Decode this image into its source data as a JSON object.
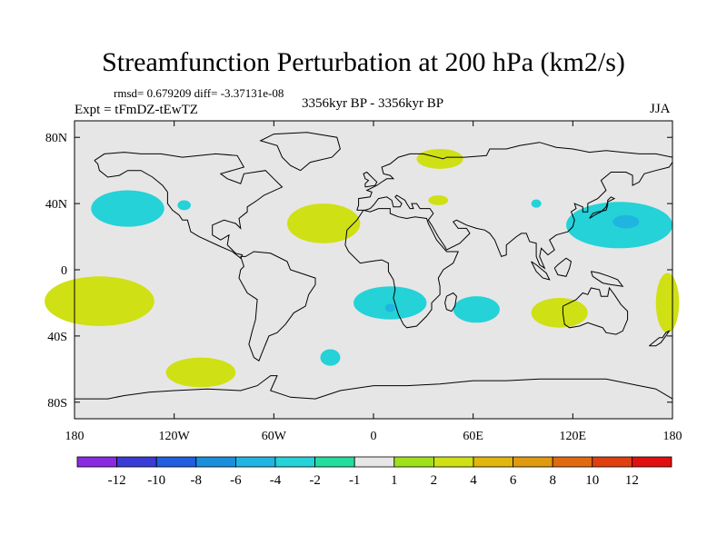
{
  "title": "Streamfunction Perturbation at 200 hPa (km2/s)",
  "stats": "rmsd= 0.679209 diff= -3.37131e-08",
  "expt": "Expt = tFmDZ-tEwTZ",
  "period": "3356kyr BP - 3356kyr BP",
  "season": "JJA",
  "colors": {
    "ocean": "#e6e6e6",
    "coast": "#000000"
  },
  "map_data": {
    "type": "contour-fill map",
    "projection": "cylindrical equidistant",
    "lon_range": [
      -180,
      180
    ],
    "lat_range": [
      -90,
      90
    ],
    "lon_ticks": [
      {
        "value": -180,
        "label": "180"
      },
      {
        "value": -120,
        "label": "120W"
      },
      {
        "value": -60,
        "label": "60W"
      },
      {
        "value": 0,
        "label": "0"
      },
      {
        "value": 60,
        "label": "60E"
      },
      {
        "value": 120,
        "label": "120E"
      },
      {
        "value": 180,
        "label": "180"
      }
    ],
    "lat_ticks": [
      {
        "value": 80,
        "label": "80N"
      },
      {
        "value": 40,
        "label": "40N"
      },
      {
        "value": 0,
        "label": "0"
      },
      {
        "value": -40,
        "label": "40S"
      },
      {
        "value": -80,
        "label": "80S"
      }
    ],
    "anomalies": [
      {
        "name": "n-pacific-neg",
        "lon": -148,
        "lat": 37,
        "rlon": 22,
        "rlat": 11,
        "level": "-2"
      },
      {
        "name": "n-america-neg",
        "lon": -114,
        "lat": 39,
        "rlon": 4,
        "rlat": 3,
        "level": "-2"
      },
      {
        "name": "n-atlantic-pos",
        "lon": -30,
        "lat": 28,
        "rlon": 22,
        "rlat": 12,
        "level": "2"
      },
      {
        "name": "arctic-pos",
        "lon": 40,
        "lat": 67,
        "rlon": 14,
        "rlat": 6,
        "level": "2"
      },
      {
        "name": "mediterranean-pos",
        "lon": 39,
        "lat": 42,
        "rlon": 6,
        "rlat": 3,
        "level": "2"
      },
      {
        "name": "central-asia-neg",
        "lon": 98,
        "lat": 40,
        "rlon": 3,
        "rlat": 2.5,
        "level": "-2"
      },
      {
        "name": "nw-pacific-neg",
        "lon": 148,
        "lat": 27,
        "rlon": 32,
        "rlat": 14,
        "level": "-2"
      },
      {
        "name": "nw-pacific-core",
        "lon": 152,
        "lat": 29,
        "rlon": 8,
        "rlat": 4,
        "level": "-4"
      },
      {
        "name": "s-pacific-pos",
        "lon": -165,
        "lat": -19,
        "rlon": 33,
        "rlat": 15,
        "level": "2"
      },
      {
        "name": "s-atlantic-neg",
        "lon": 10,
        "lat": -20,
        "rlon": 22,
        "rlat": 10,
        "level": "-2"
      },
      {
        "name": "s-atlantic-core",
        "lon": 10,
        "lat": -23,
        "rlon": 3,
        "rlat": 2.5,
        "level": "-4"
      },
      {
        "name": "indian-ocean-neg",
        "lon": 62,
        "lat": -24,
        "rlon": 14,
        "rlat": 8,
        "level": "-2"
      },
      {
        "name": "australia-pos",
        "lon": 112,
        "lat": -26,
        "rlon": 17,
        "rlat": 9,
        "level": "2"
      },
      {
        "name": "tasman-pos",
        "lon": 177,
        "lat": -20,
        "rlon": 7,
        "rlat": 18,
        "level": "2"
      },
      {
        "name": "se-pacific-pos",
        "lon": -104,
        "lat": -62,
        "rlon": 21,
        "rlat": 9,
        "level": "2"
      },
      {
        "name": "s-atlantic-south-neg",
        "lon": -26,
        "lat": -53,
        "rlon": 6,
        "rlat": 5,
        "level": "-2"
      }
    ]
  },
  "colorbar": {
    "labels": [
      "-12",
      "-10",
      "-8",
      "-6",
      "-4",
      "-2",
      "-1",
      "1",
      "2",
      "4",
      "6",
      "8",
      "10",
      "12"
    ],
    "colors": [
      "#8a2be2",
      "#3b3bd6",
      "#1f5fe0",
      "#1a8fdc",
      "#20b5e0",
      "#24d2d8",
      "#22dca0",
      "#e6e6e6",
      "#9fe01a",
      "#cfe015",
      "#e0b60f",
      "#e09a10",
      "#e06a10",
      "#e04010",
      "#e01010"
    ]
  }
}
